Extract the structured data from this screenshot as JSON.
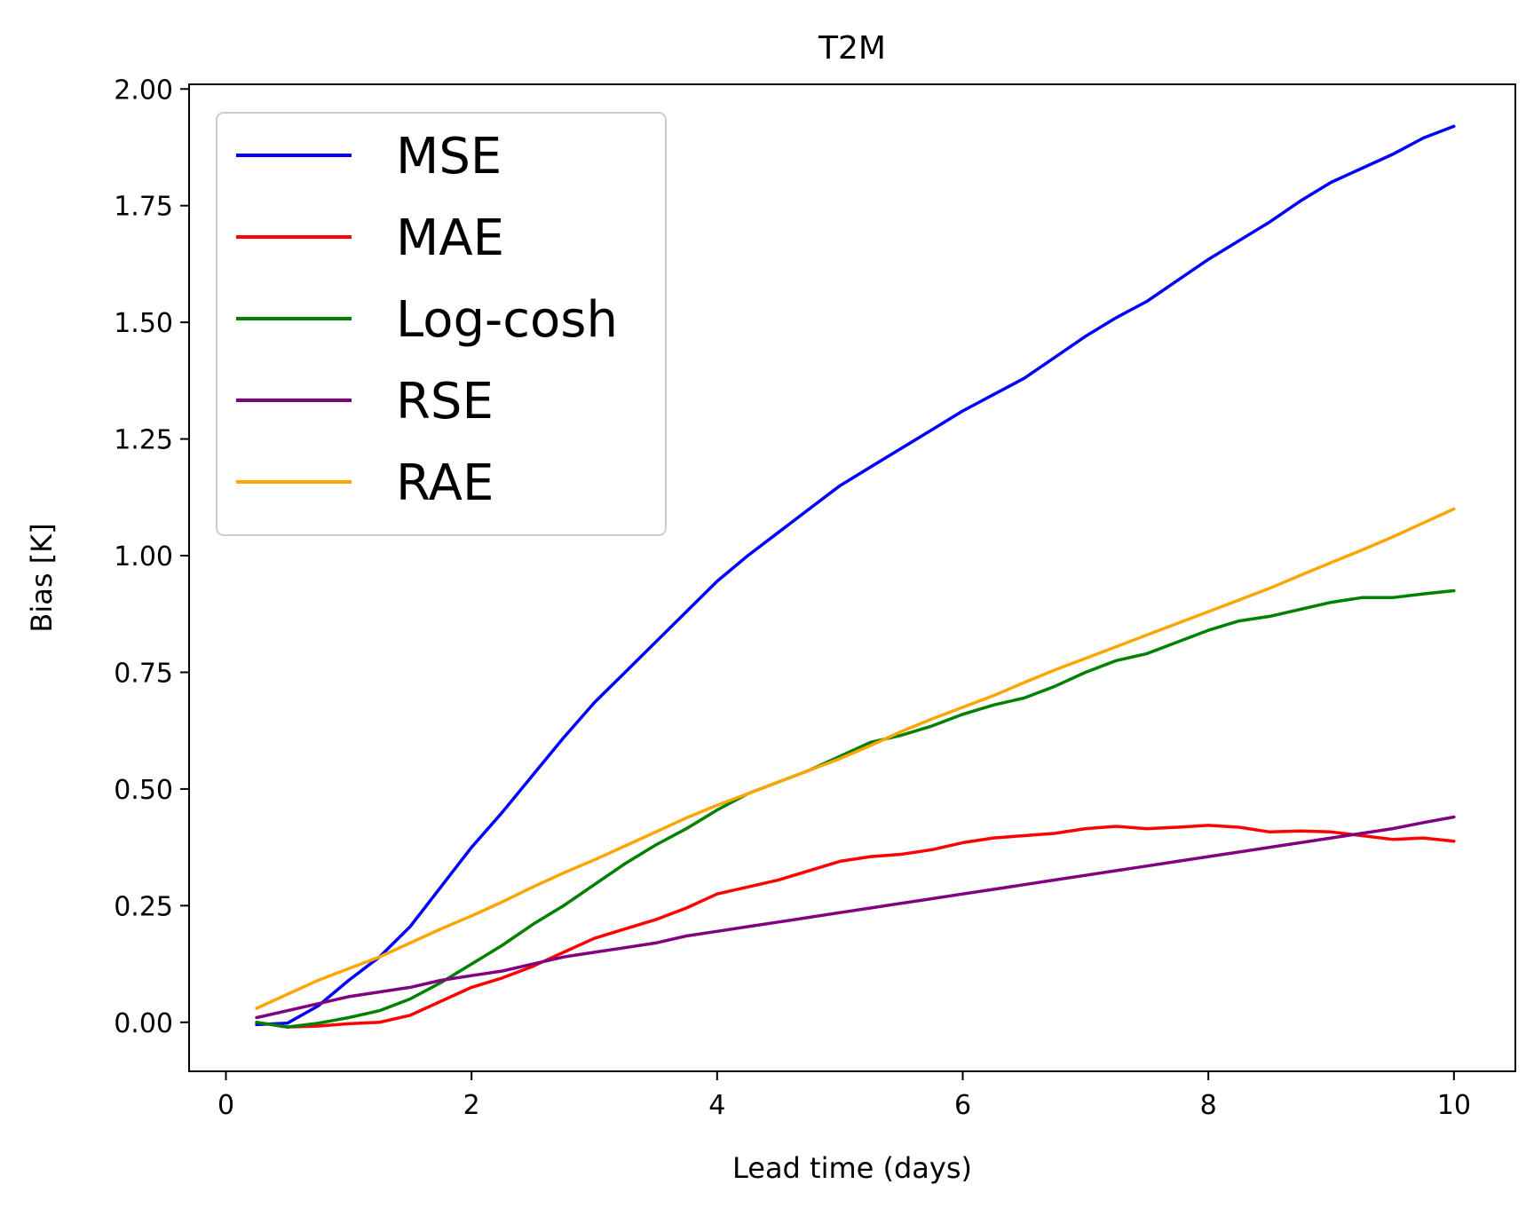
{
  "chart_data": {
    "type": "line",
    "title": "T2M",
    "xlabel": "Lead time (days)",
    "ylabel": "Bias [K]",
    "xlim": [
      -0.3,
      10.5
    ],
    "ylim": [
      -0.105,
      2.01
    ],
    "xticks": [
      0,
      2,
      4,
      6,
      8,
      10
    ],
    "xtick_labels": [
      "0",
      "2",
      "4",
      "6",
      "8",
      "10"
    ],
    "yticks": [
      0.0,
      0.25,
      0.5,
      0.75,
      1.0,
      1.25,
      1.5,
      1.75,
      2.0
    ],
    "ytick_labels": [
      "0.00",
      "0.25",
      "0.50",
      "0.75",
      "1.00",
      "1.25",
      "1.50",
      "1.75",
      "2.00"
    ],
    "grid": false,
    "legend_position": "top-left",
    "x": [
      0.25,
      0.5,
      0.75,
      1.0,
      1.25,
      1.5,
      1.75,
      2.0,
      2.25,
      2.5,
      2.75,
      3.0,
      3.25,
      3.5,
      3.75,
      4.0,
      4.25,
      4.5,
      4.75,
      5.0,
      5.25,
      5.5,
      5.75,
      6.0,
      6.25,
      6.5,
      6.75,
      7.0,
      7.25,
      7.5,
      7.75,
      8.0,
      8.25,
      8.5,
      8.75,
      9.0,
      9.25,
      9.5,
      9.75,
      10.0
    ],
    "series": [
      {
        "name": "MSE",
        "color": "#0000ff",
        "values": [
          -0.005,
          -0.002,
          0.035,
          0.09,
          0.14,
          0.205,
          0.29,
          0.375,
          0.45,
          0.53,
          0.61,
          0.685,
          0.75,
          0.815,
          0.88,
          0.945,
          1.0,
          1.05,
          1.1,
          1.15,
          1.19,
          1.23,
          1.27,
          1.31,
          1.345,
          1.38,
          1.425,
          1.47,
          1.51,
          1.545,
          1.59,
          1.635,
          1.675,
          1.715,
          1.76,
          1.8,
          1.83,
          1.86,
          1.895,
          1.92
        ]
      },
      {
        "name": "MAE",
        "color": "#ff0000",
        "values": [
          0.0,
          -0.01,
          -0.008,
          -0.003,
          0.0,
          0.015,
          0.045,
          0.075,
          0.095,
          0.12,
          0.15,
          0.18,
          0.2,
          0.22,
          0.245,
          0.275,
          0.29,
          0.305,
          0.325,
          0.345,
          0.355,
          0.36,
          0.37,
          0.385,
          0.395,
          0.4,
          0.405,
          0.415,
          0.42,
          0.415,
          0.418,
          0.422,
          0.418,
          0.408,
          0.41,
          0.408,
          0.4,
          0.392,
          0.395,
          0.388
        ]
      },
      {
        "name": "Log-cosh",
        "color": "#008000",
        "values": [
          0.0,
          -0.01,
          -0.002,
          0.01,
          0.025,
          0.05,
          0.085,
          0.125,
          0.165,
          0.21,
          0.25,
          0.295,
          0.34,
          0.38,
          0.415,
          0.455,
          0.49,
          0.515,
          0.54,
          0.57,
          0.6,
          0.615,
          0.635,
          0.66,
          0.68,
          0.695,
          0.72,
          0.75,
          0.775,
          0.79,
          0.815,
          0.84,
          0.86,
          0.87,
          0.885,
          0.9,
          0.91,
          0.91,
          0.918,
          0.925
        ]
      },
      {
        "name": "RSE",
        "color": "#800080",
        "values": [
          0.01,
          0.025,
          0.04,
          0.055,
          0.065,
          0.075,
          0.09,
          0.1,
          0.11,
          0.125,
          0.14,
          0.15,
          0.16,
          0.17,
          0.185,
          0.195,
          0.205,
          0.215,
          0.225,
          0.235,
          0.245,
          0.255,
          0.265,
          0.275,
          0.285,
          0.295,
          0.305,
          0.315,
          0.325,
          0.335,
          0.345,
          0.355,
          0.365,
          0.375,
          0.385,
          0.395,
          0.405,
          0.415,
          0.428,
          0.44
        ]
      },
      {
        "name": "RAE",
        "color": "#ffa500",
        "values": [
          0.03,
          0.06,
          0.09,
          0.115,
          0.14,
          0.17,
          0.2,
          0.228,
          0.258,
          0.29,
          0.32,
          0.348,
          0.378,
          0.408,
          0.438,
          0.465,
          0.49,
          0.515,
          0.54,
          0.565,
          0.593,
          0.623,
          0.65,
          0.675,
          0.7,
          0.728,
          0.755,
          0.78,
          0.805,
          0.83,
          0.855,
          0.88,
          0.905,
          0.93,
          0.958,
          0.985,
          1.012,
          1.04,
          1.07,
          1.1
        ]
      }
    ]
  }
}
